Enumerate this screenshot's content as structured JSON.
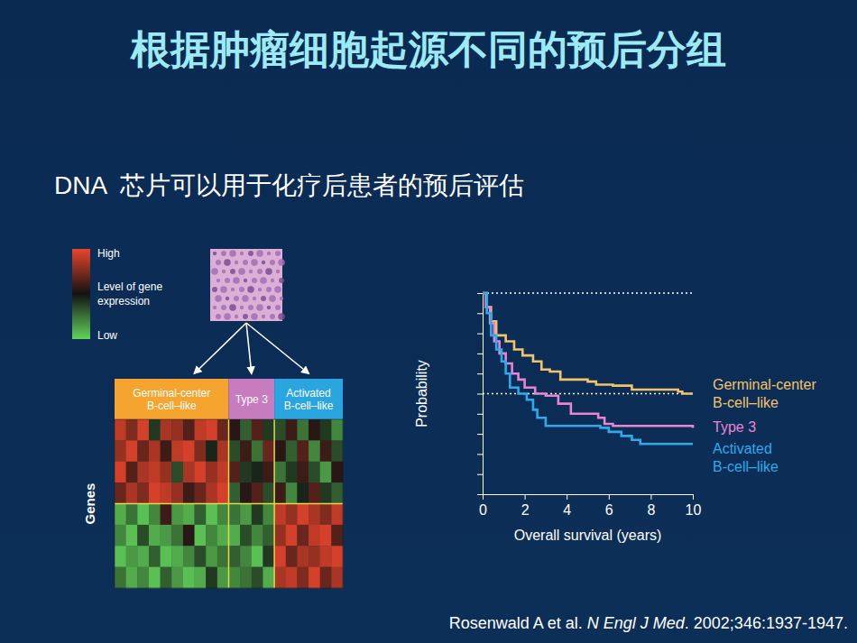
{
  "slide": {
    "title": "根据肿瘤细胞起源不同的预后分组",
    "subtitle": "DNA  芯片可以用于化疗后患者的预后评估",
    "citation": [
      "Rosenwald A et al. ",
      "N Engl J Med",
      ". 2002;346:1937-1947."
    ]
  },
  "chart_data": [
    {
      "type": "heatmap",
      "y_label": "Genes",
      "tick_labels": false,
      "groups": [
        {
          "name": "Germinal-center B-cell–like",
          "color": "#f5a52f",
          "columns": 10
        },
        {
          "name": "Type 3",
          "color": "#c77cc0",
          "columns": 4
        },
        {
          "name": "Activated B-cell–like",
          "color": "#2aa5df",
          "columns": 6
        }
      ],
      "row_groups": [
        4,
        4
      ],
      "cells": [
        [
          0.8,
          0.5,
          0.9,
          -0.2,
          0.7,
          0.6,
          0.3,
          0.8,
          0.9,
          0.4,
          0.1,
          -0.4,
          0.3,
          -0.2,
          -0.3,
          0.2,
          -0.5,
          0.1,
          -0.2,
          -0.6
        ],
        [
          0.6,
          0.9,
          0.4,
          0.7,
          0.2,
          0.8,
          0.9,
          0.5,
          -0.1,
          0.7,
          -0.3,
          0.2,
          -0.5,
          0.4,
          0.1,
          -0.4,
          0.3,
          -0.6,
          0.2,
          -0.3
        ],
        [
          0.9,
          0.3,
          0.7,
          0.8,
          0.6,
          -0.3,
          0.7,
          0.9,
          0.6,
          0.8,
          0.3,
          -0.2,
          -0.1,
          0.2,
          -0.5,
          -0.2,
          0.2,
          -0.3,
          -0.7,
          0.1
        ],
        [
          0.4,
          0.7,
          0.5,
          0.9,
          0.8,
          0.6,
          0.2,
          0.4,
          0.7,
          0.9,
          -0.4,
          0.1,
          0.3,
          -0.3,
          0.2,
          -0.6,
          -0.1,
          0.3,
          -0.2,
          -0.4
        ],
        [
          -0.8,
          -0.5,
          -0.9,
          -0.6,
          0.2,
          -0.7,
          -0.8,
          -0.4,
          -0.9,
          -0.6,
          -0.5,
          -0.7,
          -0.2,
          -0.6,
          0.8,
          0.6,
          0.9,
          0.7,
          0.5,
          0.8
        ],
        [
          -0.6,
          -0.9,
          -0.3,
          -0.8,
          -0.7,
          -0.5,
          0.1,
          -0.9,
          -0.6,
          -0.8,
          -0.8,
          -0.3,
          -0.6,
          -0.4,
          0.6,
          0.9,
          0.4,
          0.8,
          0.9,
          0.3
        ],
        [
          -0.9,
          -0.7,
          -0.8,
          -0.4,
          -0.9,
          -0.8,
          -0.6,
          -0.3,
          -0.7,
          -0.5,
          -0.4,
          -0.6,
          -0.9,
          -0.2,
          0.9,
          0.4,
          0.7,
          0.6,
          0.8,
          0.9
        ],
        [
          -0.5,
          -0.8,
          -0.6,
          -0.9,
          -0.4,
          -0.7,
          -0.9,
          -0.8,
          -0.2,
          -0.7,
          -0.6,
          -0.5,
          -0.3,
          -0.8,
          0.7,
          0.8,
          0.5,
          0.9,
          0.4,
          0.7
        ]
      ],
      "colorbar": {
        "title": "Level of gene expression",
        "range": [
          -1,
          1
        ],
        "ticks": [
          {
            "value": 1,
            "label": "High"
          },
          {
            "value": -1,
            "label": "Low"
          }
        ]
      }
    },
    {
      "type": "line",
      "line_style": "step",
      "x_label": "Overall survival (years)",
      "y_label": "Probability",
      "xlim": [
        0,
        10
      ],
      "xticks": [
        0,
        2,
        4,
        6,
        8,
        10
      ],
      "ylim": [
        0,
        1
      ],
      "yticks": [
        0,
        0.1,
        0.2,
        0.3,
        0.4,
        0.5,
        0.6,
        0.7,
        0.8,
        0.9,
        1
      ],
      "tick_labels": "x",
      "hlines": [
        1,
        0.5
      ],
      "legend": "right",
      "series": [
        {
          "name": "Germinal-center B-cell–like",
          "color": "#f2c46a",
          "x": [
            0,
            0.2,
            0.4,
            0.65,
            1.1,
            1.5,
            1.9,
            2.4,
            2.8,
            3.2,
            3.7,
            5.0,
            5.4,
            6.2,
            7.1,
            9.3,
            9.5,
            10
          ],
          "values": [
            1.0,
            0.93,
            0.86,
            0.79,
            0.76,
            0.72,
            0.69,
            0.66,
            0.62,
            0.61,
            0.57,
            0.56,
            0.545,
            0.54,
            0.52,
            0.51,
            0.5,
            0.5
          ]
        },
        {
          "name": "Type 3",
          "color": "#e784d6",
          "x": [
            0,
            0.15,
            0.35,
            0.55,
            0.8,
            1.1,
            1.4,
            1.7,
            2.0,
            2.5,
            3.0,
            3.6,
            4.2,
            5.5,
            5.8,
            6.2,
            10
          ],
          "values": [
            1.0,
            0.93,
            0.85,
            0.76,
            0.7,
            0.65,
            0.6,
            0.57,
            0.53,
            0.5,
            0.49,
            0.45,
            0.4,
            0.38,
            0.35,
            0.34,
            0.33
          ]
        },
        {
          "name": "Activated B-cell–like",
          "color": "#2eaaea",
          "x": [
            0,
            0.2,
            0.4,
            0.65,
            0.9,
            1.1,
            1.3,
            1.7,
            2.1,
            2.4,
            2.6,
            3.0,
            5.6,
            6.0,
            6.6,
            7.1,
            7.5,
            10
          ],
          "values": [
            1.0,
            0.9,
            0.79,
            0.72,
            0.66,
            0.6,
            0.53,
            0.5,
            0.47,
            0.42,
            0.38,
            0.34,
            0.33,
            0.31,
            0.29,
            0.27,
            0.25,
            0.25
          ]
        }
      ]
    }
  ]
}
